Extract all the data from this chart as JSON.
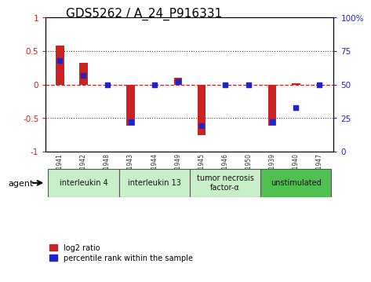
{
  "title": "GDS5262 / A_24_P916331",
  "samples": [
    "GSM1151941",
    "GSM1151942",
    "GSM1151948",
    "GSM1151943",
    "GSM1151944",
    "GSM1151949",
    "GSM1151945",
    "GSM1151946",
    "GSM1151950",
    "GSM1151939",
    "GSM1151940",
    "GSM1151947"
  ],
  "log2_ratio": [
    0.58,
    0.32,
    0.0,
    -0.62,
    0.0,
    0.1,
    -0.75,
    0.0,
    0.0,
    -0.62,
    0.02,
    0.0
  ],
  "percentile_rank": [
    68,
    57,
    50,
    22,
    50,
    52,
    19,
    50,
    50,
    22,
    33,
    50
  ],
  "agents": [
    {
      "label": "interleukin 4",
      "start": 0,
      "end": 3,
      "color": "#c8f0c8"
    },
    {
      "label": "interleukin 13",
      "start": 3,
      "end": 6,
      "color": "#c8f0c8"
    },
    {
      "label": "tumor necrosis\nfactor-α",
      "start": 6,
      "end": 9,
      "color": "#c8f0c8"
    },
    {
      "label": "unstimulated",
      "start": 9,
      "end": 12,
      "color": "#50c050"
    }
  ],
  "ylim": [
    -1,
    1
  ],
  "right_ylim": [
    0,
    100
  ],
  "right_yticks": [
    0,
    25,
    50,
    75,
    100
  ],
  "right_yticklabels": [
    "0",
    "25",
    "50",
    "75",
    "100%"
  ],
  "left_yticks": [
    -1,
    -0.5,
    0,
    0.5,
    1
  ],
  "left_yticklabels": [
    "-1",
    "-0.5",
    "0",
    "0.5",
    "1"
  ],
  "bar_color": "#cc2222",
  "dot_color": "#2222cc",
  "hline_color": "#cc2222",
  "dotted_color": "#444444",
  "bg_color": "#ffffff",
  "plot_bg_color": "#ffffff",
  "title_fontsize": 11,
  "bar_width": 0.35
}
